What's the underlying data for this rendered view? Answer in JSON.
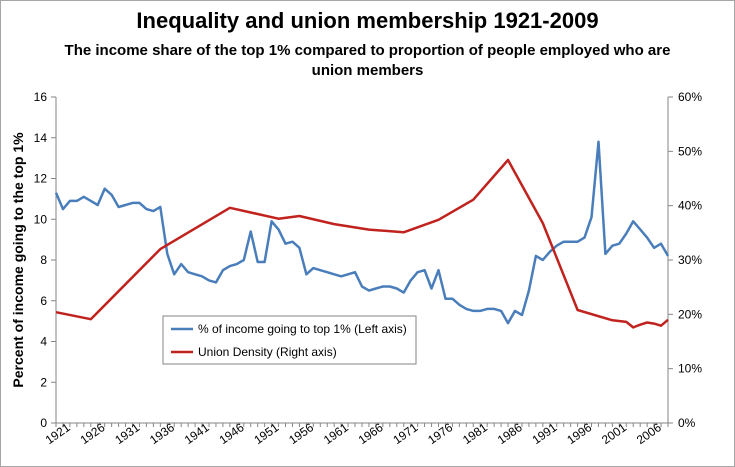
{
  "chart_data": {
    "type": "line",
    "title": "Inequality and union membership 1921-2009",
    "subtitle": [
      "The income share of the top 1% compared to proportion of people employed who are",
      "union members"
    ],
    "ylabel": "Percent of income going to the top 1%",
    "y_left_ticks": [
      "0",
      "2",
      "4",
      "6",
      "8",
      "10",
      "12",
      "14",
      "16"
    ],
    "y_right_ticks": [
      "0%",
      "10%",
      "20%",
      "30%",
      "40%",
      "50%",
      "60%"
    ],
    "ylim_left": [
      0,
      16
    ],
    "ylim_right": [
      0,
      60
    ],
    "x_tick_labels": [
      "1921",
      "1926",
      "1931",
      "1936",
      "1941",
      "1946",
      "1951",
      "1956",
      "1961",
      "1966",
      "1971",
      "1976",
      "1981",
      "1986",
      "1991",
      "1996",
      "2001",
      "2006"
    ],
    "xlim": [
      1921,
      2009
    ],
    "grid": false,
    "legend_position": "lower-left inside plot",
    "series": [
      {
        "name": "% of income going to top 1% (Left axis)",
        "axis": "left",
        "color": "#4a7ebb",
        "points": [
          [
            1921,
            11.3
          ],
          [
            1922,
            10.5
          ],
          [
            1923,
            10.9
          ],
          [
            1924,
            10.9
          ],
          [
            1925,
            11.1
          ],
          [
            1926,
            10.9
          ],
          [
            1927,
            10.7
          ],
          [
            1928,
            11.5
          ],
          [
            1929,
            11.2
          ],
          [
            1930,
            10.6
          ],
          [
            1931,
            10.7
          ],
          [
            1932,
            10.8
          ],
          [
            1933,
            10.8
          ],
          [
            1934,
            10.5
          ],
          [
            1935,
            10.4
          ],
          [
            1936,
            10.6
          ],
          [
            1937,
            8.3
          ],
          [
            1938,
            7.3
          ],
          [
            1939,
            7.8
          ],
          [
            1940,
            7.4
          ],
          [
            1941,
            7.3
          ],
          [
            1942,
            7.2
          ],
          [
            1943,
            7.0
          ],
          [
            1944,
            6.9
          ],
          [
            1945,
            7.5
          ],
          [
            1946,
            7.7
          ],
          [
            1947,
            7.8
          ],
          [
            1948,
            8.0
          ],
          [
            1949,
            9.4
          ],
          [
            1950,
            7.9
          ],
          [
            1951,
            7.9
          ],
          [
            1952,
            9.9
          ],
          [
            1953,
            9.5
          ],
          [
            1954,
            8.8
          ],
          [
            1955,
            8.9
          ],
          [
            1956,
            8.6
          ],
          [
            1957,
            7.3
          ],
          [
            1958,
            7.6
          ],
          [
            1959,
            7.5
          ],
          [
            1960,
            7.4
          ],
          [
            1961,
            7.3
          ],
          [
            1962,
            7.2
          ],
          [
            1963,
            7.3
          ],
          [
            1964,
            7.4
          ],
          [
            1965,
            6.7
          ],
          [
            1966,
            6.5
          ],
          [
            1967,
            6.6
          ],
          [
            1968,
            6.7
          ],
          [
            1969,
            6.7
          ],
          [
            1970,
            6.6
          ],
          [
            1971,
            6.4
          ],
          [
            1972,
            7.0
          ],
          [
            1973,
            7.4
          ],
          [
            1974,
            7.5
          ],
          [
            1975,
            6.6
          ],
          [
            1976,
            7.5
          ],
          [
            1977,
            6.1
          ],
          [
            1978,
            6.1
          ],
          [
            1979,
            5.8
          ],
          [
            1980,
            5.6
          ],
          [
            1981,
            5.5
          ],
          [
            1982,
            5.5
          ],
          [
            1983,
            5.6
          ],
          [
            1984,
            5.6
          ],
          [
            1985,
            5.5
          ],
          [
            1986,
            4.9
          ],
          [
            1987,
            5.5
          ],
          [
            1988,
            5.3
          ],
          [
            1989,
            6.5
          ],
          [
            1990,
            8.2
          ],
          [
            1991,
            8.0
          ],
          [
            1992,
            8.4
          ],
          [
            1993,
            8.7
          ],
          [
            1994,
            8.9
          ],
          [
            1995,
            8.9
          ],
          [
            1996,
            8.9
          ],
          [
            1997,
            9.1
          ],
          [
            1998,
            10.1
          ],
          [
            1999,
            13.8
          ],
          [
            2000,
            8.3
          ],
          [
            2001,
            8.7
          ],
          [
            2002,
            8.8
          ],
          [
            2003,
            9.3
          ],
          [
            2004,
            9.9
          ],
          [
            2005,
            9.5
          ],
          [
            2006,
            9.1
          ],
          [
            2007,
            8.6
          ],
          [
            2008,
            8.8
          ],
          [
            2009,
            8.2
          ]
        ]
      },
      {
        "name": "Union Density (Right axis)",
        "axis": "right",
        "color": "#c0221e",
        "points": [
          [
            1921,
            20.4
          ],
          [
            1926,
            19.1
          ],
          [
            1936,
            32.0
          ],
          [
            1946,
            39.6
          ],
          [
            1953,
            37.6
          ],
          [
            1956,
            38.1
          ],
          [
            1961,
            36.6
          ],
          [
            1966,
            35.6
          ],
          [
            1971,
            35.1
          ],
          [
            1976,
            37.4
          ],
          [
            1981,
            41.1
          ],
          [
            1986,
            48.4
          ],
          [
            1991,
            36.8
          ],
          [
            1996,
            20.8
          ],
          [
            2001,
            18.9
          ],
          [
            2003,
            18.6
          ],
          [
            2004,
            17.6
          ],
          [
            2005,
            18.1
          ],
          [
            2006,
            18.5
          ],
          [
            2007,
            18.3
          ],
          [
            2008,
            17.9
          ],
          [
            2009,
            19.0
          ]
        ]
      }
    ]
  }
}
